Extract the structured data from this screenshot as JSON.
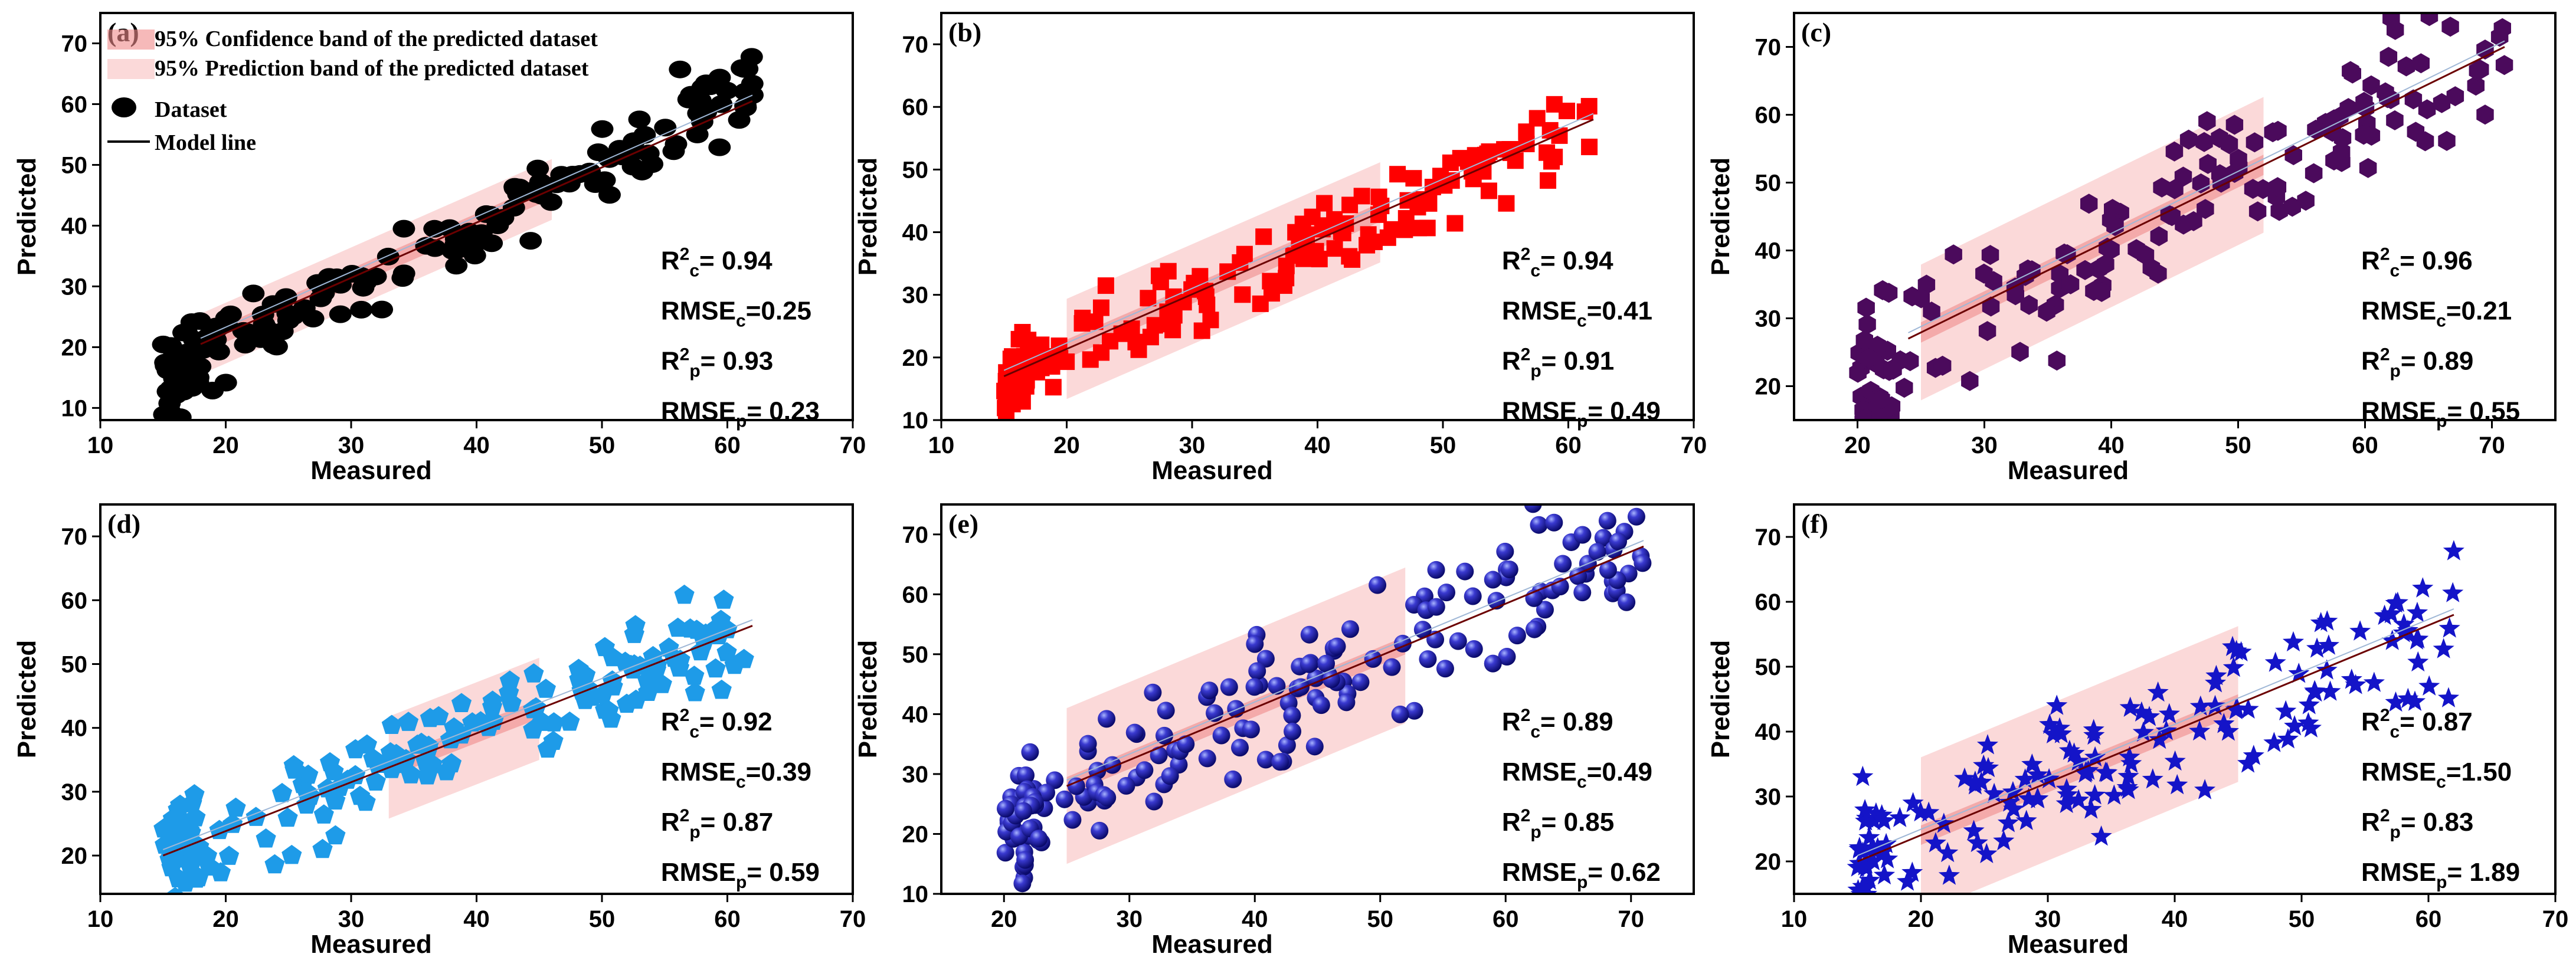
{
  "figure": {
    "title": ""
  },
  "chart_data": [
    {
      "type": "scatter",
      "panel": "(a)",
      "marker": "circle",
      "color": "#000000",
      "xlabel": "Measured",
      "ylabel": "Predicted",
      "xlim": [
        10,
        70
      ],
      "ylim": [
        8,
        75
      ],
      "xticks": [
        "10",
        "20",
        "30",
        "40",
        "50",
        "60",
        "70"
      ],
      "yticks": [
        "10",
        "20",
        "30",
        "40",
        "50",
        "60",
        "70"
      ],
      "stats": [
        "R²c= 0.94",
        "RMSEc=0.25",
        "R²p= 0.93",
        "RMSEp= 0.23"
      ],
      "model_line": [
        [
          18,
          20.5
        ],
        [
          62,
          60.5
        ]
      ],
      "band_x": [
        18,
        46
      ],
      "ci_half": 1.5,
      "pi_half": 5,
      "cluster": {
        "xmin": 15,
        "xmax": 62,
        "slope": 0.98,
        "intercept": 1.0,
        "noise": 3.5,
        "count": 180
      },
      "legend": [
        "95% Confidence band of the predicted dataset",
        "95% Prediction band of the predicted dataset",
        "Dataset",
        "Model line"
      ]
    },
    {
      "type": "scatter",
      "panel": "(b)",
      "marker": "square",
      "color": "#ff0000",
      "xlabel": "Measured",
      "ylabel": "Predicted",
      "xlim": [
        10,
        70
      ],
      "ylim": [
        10,
        75
      ],
      "xticks": [
        "10",
        "20",
        "30",
        "40",
        "50",
        "60",
        "70"
      ],
      "yticks": [
        "10",
        "20",
        "30",
        "40",
        "50",
        "60",
        "70"
      ],
      "stats": [
        "R²c= 0.94",
        "RMSEc=0.41",
        "R²p= 0.91",
        "RMSEp= 0.49"
      ],
      "model_line": [
        [
          15,
          17
        ],
        [
          62,
          58
        ]
      ],
      "band_x": [
        20,
        45
      ],
      "ci_half": 1.5,
      "pi_half": 8,
      "cluster": {
        "xmin": 15,
        "xmax": 62,
        "slope": 0.85,
        "intercept": 4.0,
        "noise": 3.0,
        "count": 180
      }
    },
    {
      "type": "scatter",
      "panel": "(c)",
      "marker": "hexagon",
      "color": "#4b0a5c",
      "xlabel": "Measured",
      "ylabel": "Predicted",
      "xlim": [
        15,
        75
      ],
      "ylim": [
        15,
        75
      ],
      "xticks": [
        "20",
        "30",
        "40",
        "50",
        "60",
        "70"
      ],
      "yticks": [
        "20",
        "30",
        "40",
        "50",
        "60",
        "70"
      ],
      "stats": [
        "R²c= 0.96",
        "RMSEc=0.21",
        "R²p= 0.89",
        "RMSEp= 0.55"
      ],
      "model_line": [
        [
          24,
          27
        ],
        [
          71,
          70
        ]
      ],
      "band_x": [
        25,
        52
      ],
      "ci_half": 1.5,
      "pi_half": 10,
      "cluster": {
        "xmin": 20,
        "xmax": 71,
        "slope": 0.98,
        "intercept": 1.0,
        "noise": 5.0,
        "count": 170
      }
    },
    {
      "type": "scatter",
      "panel": "(d)",
      "marker": "pentagon",
      "color": "#1e9be8",
      "xlabel": "Measured",
      "ylabel": "Predicted",
      "xlim": [
        10,
        70
      ],
      "ylim": [
        14,
        75
      ],
      "xticks": [
        "10",
        "20",
        "30",
        "40",
        "50",
        "60",
        "70"
      ],
      "yticks": [
        "20",
        "30",
        "40",
        "50",
        "60",
        "70"
      ],
      "stats": [
        "R²c= 0.92",
        "RMSEc=0.39",
        "R²p= 0.87",
        "RMSEp= 0.59"
      ],
      "model_line": [
        [
          15,
          20
        ],
        [
          62,
          56
        ]
      ],
      "band_x": [
        33,
        45
      ],
      "ci_half": 1.5,
      "pi_half": 8,
      "cluster": {
        "xmin": 15,
        "xmax": 62,
        "slope": 0.78,
        "intercept": 8.0,
        "noise": 3.5,
        "count": 180
      }
    },
    {
      "type": "scatter",
      "panel": "(e)",
      "marker": "sphere",
      "color": "#1a1aa8",
      "xlabel": "Measured",
      "ylabel": "Predicted",
      "xlim": [
        15,
        75
      ],
      "ylim": [
        10,
        75
      ],
      "xticks": [
        "20",
        "30",
        "40",
        "50",
        "60",
        "70"
      ],
      "yticks": [
        "10",
        "20",
        "30",
        "40",
        "50",
        "60",
        "70"
      ],
      "stats": [
        "R²c= 0.89",
        "RMSEc=0.49",
        "R²p= 0.85",
        "RMSEp= 0.62"
      ],
      "model_line": [
        [
          25,
          28
        ],
        [
          71,
          68
        ]
      ],
      "band_x": [
        25,
        52
      ],
      "ci_half": 1.5,
      "pi_half": 13,
      "cluster": {
        "xmin": 20,
        "xmax": 71,
        "slope": 0.97,
        "intercept": 2.0,
        "noise": 5.5,
        "count": 190
      }
    },
    {
      "type": "scatter",
      "panel": "(f)",
      "marker": "star",
      "color": "#1414c8",
      "xlabel": "Measured",
      "ylabel": "Predicted",
      "xlim": [
        10,
        70
      ],
      "ylim": [
        15,
        75
      ],
      "xticks": [
        "10",
        "20",
        "30",
        "40",
        "50",
        "60",
        "70"
      ],
      "yticks": [
        "20",
        "30",
        "40",
        "50",
        "60",
        "70"
      ],
      "stats": [
        "R²c= 0.87",
        "RMSEc=1.50",
        "R²p= 0.83",
        "RMSEp= 1.89"
      ],
      "model_line": [
        [
          15,
          20
        ],
        [
          62,
          58
        ]
      ],
      "band_x": [
        20,
        45
      ],
      "ci_half": 1.5,
      "pi_half": 12,
      "cluster": {
        "xmin": 15,
        "xmax": 62,
        "slope": 0.8,
        "intercept": 8.0,
        "noise": 5.5,
        "count": 170
      }
    }
  ]
}
